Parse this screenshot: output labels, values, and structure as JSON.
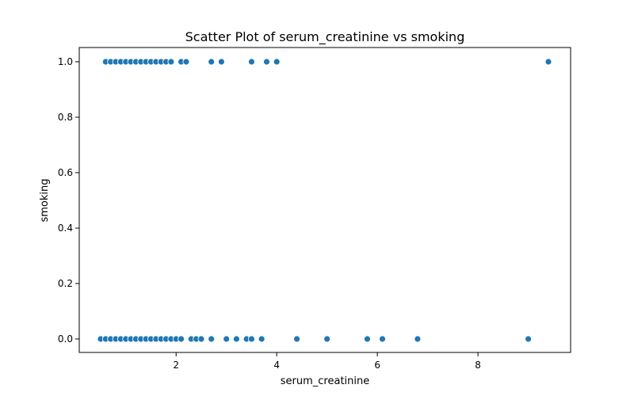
{
  "chart_data": {
    "type": "scatter",
    "title": "Scatter Plot of serum_creatinine vs smoking",
    "xlabel": "serum_creatinine",
    "ylabel": "smoking",
    "xlim": [
      0.5,
      9.4
    ],
    "ylim": [
      -0.05,
      1.05
    ],
    "xticks": [
      2,
      4,
      6,
      8
    ],
    "yticks": [
      0.0,
      0.2,
      0.4,
      0.6,
      0.8,
      1.0
    ],
    "xtick_labels": [
      "2",
      "4",
      "6",
      "8"
    ],
    "ytick_labels": [
      "0.0",
      "0.2",
      "0.4",
      "0.6",
      "0.8",
      "1.0"
    ],
    "grid": false,
    "legend": "none",
    "marker_color": "#1f77b4",
    "series": [
      {
        "points": [
          [
            0.6,
            1
          ],
          [
            0.7,
            1
          ],
          [
            0.8,
            1
          ],
          [
            0.9,
            1
          ],
          [
            1.0,
            1
          ],
          [
            1.1,
            1
          ],
          [
            1.2,
            1
          ],
          [
            1.3,
            1
          ],
          [
            1.4,
            1
          ],
          [
            1.5,
            1
          ],
          [
            1.6,
            1
          ],
          [
            1.7,
            1
          ],
          [
            1.8,
            1
          ],
          [
            1.9,
            1
          ],
          [
            2.1,
            1
          ],
          [
            2.2,
            1
          ],
          [
            2.7,
            1
          ],
          [
            2.9,
            1
          ],
          [
            3.5,
            1
          ],
          [
            3.8,
            1
          ],
          [
            4.0,
            1
          ],
          [
            9.4,
            1
          ],
          [
            0.5,
            0
          ],
          [
            0.6,
            0
          ],
          [
            0.7,
            0
          ],
          [
            0.8,
            0
          ],
          [
            0.9,
            0
          ],
          [
            1.0,
            0
          ],
          [
            1.1,
            0
          ],
          [
            1.2,
            0
          ],
          [
            1.3,
            0
          ],
          [
            1.4,
            0
          ],
          [
            1.5,
            0
          ],
          [
            1.6,
            0
          ],
          [
            1.7,
            0
          ],
          [
            1.8,
            0
          ],
          [
            1.9,
            0
          ],
          [
            2.0,
            0
          ],
          [
            2.1,
            0
          ],
          [
            2.3,
            0
          ],
          [
            2.4,
            0
          ],
          [
            2.5,
            0
          ],
          [
            2.7,
            0
          ],
          [
            3.0,
            0
          ],
          [
            3.2,
            0
          ],
          [
            3.4,
            0
          ],
          [
            3.5,
            0
          ],
          [
            3.7,
            0
          ],
          [
            4.4,
            0
          ],
          [
            5.0,
            0
          ],
          [
            5.8,
            0
          ],
          [
            6.1,
            0
          ],
          [
            6.8,
            0
          ],
          [
            9.0,
            0
          ]
        ]
      }
    ]
  }
}
